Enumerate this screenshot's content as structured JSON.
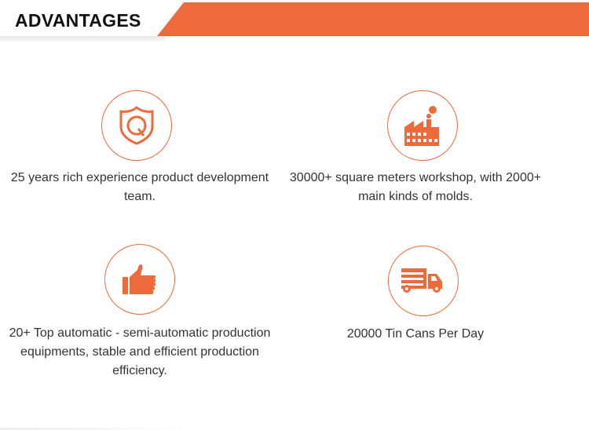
{
  "header": {
    "title": "ADVANTAGES",
    "accent": "#ee6a3a"
  },
  "items": [
    {
      "icon": "shield-q-icon",
      "text": "25 years rich experience product development team."
    },
    {
      "icon": "factory-icon",
      "text": "30000+ square meters workshop, with 2000+ main kinds of molds."
    },
    {
      "icon": "thumbs-up-icon",
      "text": "20+ Top automatic - semi-automatic production equipments, stable and efficient production efficiency."
    },
    {
      "icon": "truck-icon",
      "text": "20000 Tin Cans Per Day"
    }
  ]
}
